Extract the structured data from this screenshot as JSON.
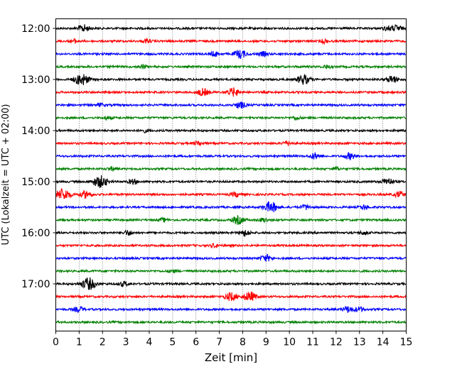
{
  "chart_data": {
    "type": "line",
    "xlabel": "Zeit  [min]",
    "ylabel": "UTC (Lokalzeit = UTC + 02:00)",
    "xlim": [
      0,
      15
    ],
    "x_ticks": [
      0,
      1,
      2,
      3,
      4,
      5,
      6,
      7,
      8,
      9,
      10,
      11,
      12,
      13,
      14,
      15
    ],
    "y_tick_labels": [
      "12:00",
      "13:00",
      "14:00",
      "15:00",
      "16:00",
      "17:00"
    ],
    "y_tick_trace_index": [
      0,
      4,
      8,
      12,
      16,
      20
    ],
    "vertical_grid": true,
    "grid_style": "dotted",
    "colors": [
      "#000000",
      "#ff0000",
      "#0000ff",
      "#008000"
    ],
    "traces": [
      {
        "start": "12:00",
        "color_index": 0,
        "bursts": [
          [
            1.2,
            0.6
          ],
          [
            14.2,
            0.35
          ],
          [
            14.6,
            0.5
          ]
        ]
      },
      {
        "start": "12:15",
        "color_index": 1,
        "bursts": [
          [
            0.8,
            0.3
          ],
          [
            3.9,
            0.3
          ],
          [
            11.5,
            0.3
          ]
        ]
      },
      {
        "start": "12:30",
        "color_index": 2,
        "bursts": [
          [
            6.8,
            0.4
          ],
          [
            7.9,
            0.7
          ],
          [
            8.9,
            0.35
          ]
        ]
      },
      {
        "start": "12:45",
        "color_index": 3,
        "bursts": [
          [
            3.7,
            0.3
          ],
          [
            11.6,
            0.3
          ]
        ]
      },
      {
        "start": "13:00",
        "color_index": 0,
        "bursts": [
          [
            1.1,
            1.0
          ],
          [
            10.6,
            0.8
          ],
          [
            14.4,
            0.6
          ]
        ]
      },
      {
        "start": "13:15",
        "color_index": 1,
        "bursts": [
          [
            6.3,
            0.6
          ],
          [
            7.6,
            0.7
          ]
        ]
      },
      {
        "start": "13:30",
        "color_index": 2,
        "bursts": [
          [
            7.9,
            0.55
          ],
          [
            1.9,
            0.25
          ]
        ]
      },
      {
        "start": "13:45",
        "color_index": 3,
        "bursts": [
          [
            2.2,
            0.25
          ],
          [
            10.3,
            0.25
          ]
        ]
      },
      {
        "start": "14:00",
        "color_index": 0,
        "bursts": [
          [
            3.8,
            0.25
          ]
        ]
      },
      {
        "start": "14:15",
        "color_index": 1,
        "bursts": [
          [
            6.1,
            0.35
          ],
          [
            9.9,
            0.35
          ]
        ]
      },
      {
        "start": "14:30",
        "color_index": 2,
        "bursts": [
          [
            11.1,
            0.5
          ],
          [
            12.6,
            0.55
          ]
        ]
      },
      {
        "start": "14:45",
        "color_index": 3,
        "bursts": [
          [
            2.4,
            0.3
          ],
          [
            12.0,
            0.25
          ]
        ]
      },
      {
        "start": "15:00",
        "color_index": 0,
        "bursts": [
          [
            1.9,
            1.0
          ],
          [
            3.3,
            0.4
          ],
          [
            14.2,
            0.6
          ]
        ]
      },
      {
        "start": "15:15",
        "color_index": 1,
        "bursts": [
          [
            0.3,
            1.0
          ],
          [
            1.3,
            0.6
          ],
          [
            7.7,
            0.4
          ],
          [
            14.7,
            0.5
          ]
        ]
      },
      {
        "start": "15:30",
        "color_index": 2,
        "bursts": [
          [
            9.2,
            0.9
          ],
          [
            10.7,
            0.4
          ],
          [
            13.2,
            0.35
          ]
        ]
      },
      {
        "start": "15:45",
        "color_index": 3,
        "bursts": [
          [
            4.6,
            0.3
          ],
          [
            7.8,
            0.7
          ],
          [
            8.9,
            0.35
          ]
        ]
      },
      {
        "start": "16:00",
        "color_index": 0,
        "bursts": [
          [
            3.1,
            0.4
          ],
          [
            8.1,
            0.5
          ],
          [
            13.2,
            0.3
          ]
        ]
      },
      {
        "start": "16:15",
        "color_index": 1,
        "bursts": [
          [
            6.8,
            0.3
          ]
        ]
      },
      {
        "start": "16:30",
        "color_index": 2,
        "bursts": [
          [
            9.0,
            0.55
          ]
        ]
      },
      {
        "start": "16:45",
        "color_index": 3,
        "bursts": [
          [
            5.0,
            0.25
          ]
        ]
      },
      {
        "start": "17:00",
        "color_index": 0,
        "bursts": [
          [
            1.4,
            1.0
          ],
          [
            2.9,
            0.4
          ]
        ]
      },
      {
        "start": "17:15",
        "color_index": 1,
        "bursts": [
          [
            7.5,
            0.7
          ],
          [
            8.3,
            0.8
          ]
        ]
      },
      {
        "start": "17:30",
        "color_index": 2,
        "bursts": [
          [
            1.0,
            0.45
          ],
          [
            12.5,
            0.5
          ],
          [
            13.0,
            0.4
          ]
        ]
      },
      {
        "start": "17:45",
        "color_index": 3,
        "bursts": []
      }
    ]
  }
}
